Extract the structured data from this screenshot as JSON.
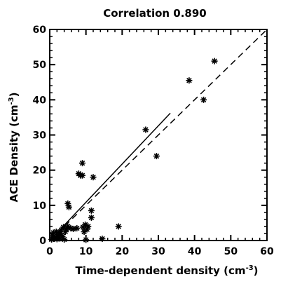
{
  "chart_data": {
    "type": "scatter",
    "title": "Correlation 0.890",
    "xlabel": "Time-dependent density (cm",
    "ylabel": "ACE Density (cm",
    "unit_exponent": "-3",
    "label_close": ")",
    "xlim": [
      0,
      60
    ],
    "ylim": [
      0,
      60
    ],
    "xticks": [
      0,
      10,
      20,
      30,
      40,
      50,
      60
    ],
    "yticks": [
      0,
      10,
      20,
      30,
      40,
      50,
      60
    ],
    "x_minor_step": 2,
    "y_minor_step": 2,
    "marker": "asterisk",
    "color": "#000000",
    "points": [
      [
        0.5,
        0.3
      ],
      [
        0.8,
        1.5
      ],
      [
        1.0,
        2.2
      ],
      [
        1.2,
        0.5
      ],
      [
        1.5,
        1.0
      ],
      [
        1.8,
        2.5
      ],
      [
        2.0,
        0.4
      ],
      [
        2.2,
        1.2
      ],
      [
        2.5,
        1.8
      ],
      [
        2.8,
        0.6
      ],
      [
        3.0,
        2.0
      ],
      [
        3.2,
        3.0
      ],
      [
        3.5,
        1.2
      ],
      [
        3.8,
        3.8
      ],
      [
        4.0,
        0.3
      ],
      [
        4.3,
        2.5
      ],
      [
        4.6,
        3.2
      ],
      [
        5.0,
        4.0
      ],
      [
        5.0,
        10.5
      ],
      [
        5.3,
        9.5
      ],
      [
        5.8,
        3.5
      ],
      [
        6.5,
        3.3
      ],
      [
        7.5,
        3.5
      ],
      [
        8.0,
        19.0
      ],
      [
        8.5,
        18.5
      ],
      [
        9.0,
        22.0
      ],
      [
        9.0,
        18.5
      ],
      [
        9.2,
        3.8
      ],
      [
        9.5,
        2.5
      ],
      [
        9.8,
        4.5
      ],
      [
        10.0,
        0.2
      ],
      [
        10.3,
        3.2
      ],
      [
        10.6,
        4.0
      ],
      [
        11.5,
        8.5
      ],
      [
        11.5,
        6.5
      ],
      [
        12.0,
        18.0
      ],
      [
        14.5,
        0.5
      ],
      [
        19.0,
        4.0
      ],
      [
        26.5,
        31.5
      ],
      [
        29.5,
        24.0
      ],
      [
        38.5,
        45.5
      ],
      [
        42.5,
        40.0
      ],
      [
        45.5,
        51.0
      ]
    ],
    "fit_solid": [
      [
        0,
        0
      ],
      [
        33.3,
        36.2
      ]
    ],
    "fit_dashed": [
      [
        0,
        0
      ],
      [
        60,
        60
      ]
    ]
  }
}
